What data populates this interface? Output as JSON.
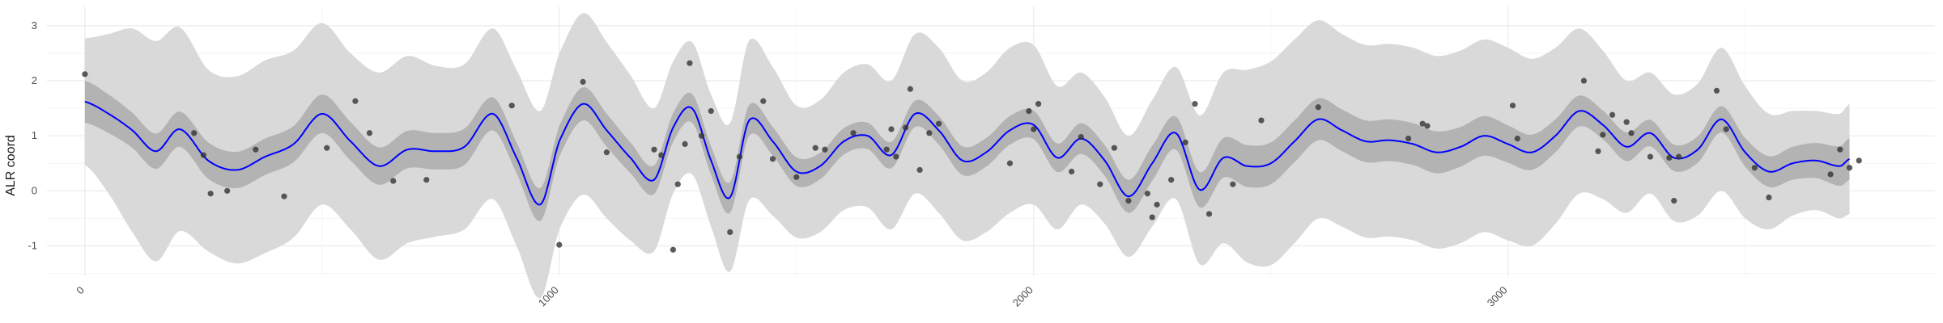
{
  "chart_data": {
    "type": "line",
    "title": "",
    "xlabel": "",
    "ylabel": "ALR coord",
    "xlim": [
      -80,
      3900
    ],
    "ylim": [
      -1.55,
      3.35
    ],
    "x_ticks": [
      0,
      1000,
      2000,
      3000
    ],
    "x_tick_labels": [
      "0",
      "1000",
      "2000",
      "3000"
    ],
    "y_ticks": [
      -1,
      0,
      1,
      2,
      3
    ],
    "y_tick_labels": [
      "-1",
      "0",
      "1",
      "2",
      "3"
    ],
    "grid": true,
    "legend": "none",
    "colors": {
      "mean_line": "#0000ff",
      "inner_band": "#b3b3b3",
      "outer_band": "#d9d9d9",
      "points": "#333333",
      "grid": "#ebebeb"
    },
    "series": [
      {
        "role": "mean",
        "x": [
          0,
          50,
          100,
          150,
          200,
          260,
          320,
          380,
          440,
          500,
          560,
          620,
          680,
          740,
          800,
          860,
          910,
          960,
          1000,
          1050,
          1100,
          1150,
          1200,
          1240,
          1280,
          1320,
          1360,
          1400,
          1450,
          1500,
          1550,
          1600,
          1650,
          1700,
          1750,
          1800,
          1850,
          1900,
          1950,
          2000,
          2050,
          2100,
          2150,
          2200,
          2250,
          2300,
          2350,
          2400,
          2450,
          2500,
          2550,
          2600,
          2650,
          2700,
          2750,
          2800,
          2850,
          2900,
          2950,
          3000,
          3050,
          3100,
          3150,
          3200,
          3250,
          3300,
          3350,
          3400,
          3450,
          3500,
          3550,
          3600,
          3650,
          3700,
          3720
        ],
        "values": [
          1.62,
          1.4,
          1.1,
          0.72,
          1.12,
          0.55,
          0.38,
          0.62,
          0.85,
          1.4,
          0.9,
          0.45,
          0.75,
          0.72,
          0.8,
          1.4,
          0.6,
          -0.25,
          0.9,
          1.58,
          1.1,
          0.6,
          0.2,
          1.15,
          1.5,
          0.55,
          -0.12,
          1.28,
          0.9,
          0.35,
          0.45,
          0.9,
          1.0,
          0.65,
          1.4,
          1.1,
          0.55,
          0.7,
          1.1,
          1.2,
          0.6,
          0.95,
          0.55,
          -0.1,
          0.5,
          1.05,
          0.02,
          0.6,
          0.45,
          0.5,
          0.9,
          1.3,
          1.1,
          0.9,
          0.92,
          0.85,
          0.7,
          0.8,
          1.0,
          0.85,
          0.7,
          1.0,
          1.45,
          1.2,
          0.8,
          1.05,
          0.6,
          0.75,
          1.3,
          0.7,
          0.35,
          0.5,
          0.55,
          0.45,
          0.58
        ]
      },
      {
        "role": "inner_band_half_width",
        "values": [
          0.38,
          0.35,
          0.32,
          0.32,
          0.32,
          0.33,
          0.33,
          0.33,
          0.33,
          0.35,
          0.35,
          0.34,
          0.34,
          0.33,
          0.33,
          0.3,
          0.28,
          0.3,
          0.28,
          0.3,
          0.3,
          0.28,
          0.26,
          0.26,
          0.26,
          0.26,
          0.28,
          0.28,
          0.26,
          0.26,
          0.24,
          0.24,
          0.24,
          0.24,
          0.24,
          0.26,
          0.26,
          0.26,
          0.26,
          0.26,
          0.26,
          0.28,
          0.28,
          0.3,
          0.32,
          0.3,
          0.32,
          0.36,
          0.38,
          0.38,
          0.38,
          0.38,
          0.38,
          0.38,
          0.38,
          0.38,
          0.38,
          0.36,
          0.36,
          0.34,
          0.32,
          0.3,
          0.28,
          0.26,
          0.26,
          0.24,
          0.24,
          0.24,
          0.24,
          0.26,
          0.28,
          0.3,
          0.32,
          0.36,
          0.38
        ]
      },
      {
        "role": "outer_band_half_width",
        "values": [
          1.15,
          1.45,
          1.85,
          2.0,
          1.85,
          1.65,
          1.7,
          1.75,
          1.7,
          1.65,
          1.6,
          1.7,
          1.7,
          1.55,
          1.5,
          1.55,
          1.6,
          1.7,
          1.6,
          1.65,
          1.6,
          1.5,
          1.3,
          1.2,
          1.2,
          1.2,
          1.35,
          1.45,
          1.35,
          1.2,
          1.2,
          1.25,
          1.3,
          1.35,
          1.45,
          1.5,
          1.45,
          1.45,
          1.5,
          1.45,
          1.3,
          1.2,
          1.15,
          1.1,
          1.15,
          1.2,
          1.35,
          1.55,
          1.75,
          1.85,
          1.85,
          1.8,
          1.75,
          1.75,
          1.75,
          1.75,
          1.75,
          1.75,
          1.75,
          1.75,
          1.7,
          1.6,
          1.5,
          1.35,
          1.2,
          1.1,
          1.15,
          1.2,
          1.3,
          1.2,
          1.05,
          0.95,
          0.9,
          0.95,
          1.0
        ]
      },
      {
        "role": "observations",
        "x": [
          0,
          230,
          250,
          265,
          300,
          360,
          420,
          510,
          570,
          600,
          650,
          720,
          900,
          1000,
          1050,
          1100,
          1200,
          1215,
          1240,
          1250,
          1265,
          1275,
          1300,
          1320,
          1360,
          1380,
          1430,
          1450,
          1500,
          1540,
          1560,
          1620,
          1690,
          1700,
          1710,
          1730,
          1740,
          1760,
          1780,
          1800,
          1950,
          1990,
          2000,
          2010,
          2080,
          2100,
          2140,
          2170,
          2200,
          2240,
          2250,
          2260,
          2290,
          2320,
          2340,
          2370,
          2420,
          2480,
          2600,
          2790,
          2820,
          2830,
          3010,
          3020,
          3160,
          3190,
          3200,
          3220,
          3250,
          3260,
          3300,
          3340,
          3350,
          3360,
          3440,
          3460,
          3520,
          3550,
          3680,
          3700,
          3720,
          3740
        ],
        "values": [
          2.12,
          1.05,
          0.65,
          -0.05,
          0.0,
          0.75,
          -0.1,
          0.78,
          1.63,
          1.05,
          0.18,
          0.2,
          1.55,
          -0.98,
          1.98,
          0.7,
          0.75,
          0.65,
          -1.07,
          0.12,
          0.85,
          2.32,
          1.0,
          1.45,
          -0.75,
          0.62,
          1.63,
          0.58,
          0.25,
          0.78,
          0.75,
          1.05,
          0.75,
          1.12,
          0.62,
          1.15,
          1.85,
          0.38,
          1.05,
          1.22,
          0.5,
          1.45,
          1.12,
          1.58,
          0.35,
          0.98,
          0.12,
          0.78,
          -0.18,
          -0.05,
          -0.48,
          -0.25,
          0.2,
          0.88,
          1.58,
          -0.42,
          0.12,
          1.28,
          1.52,
          0.95,
          1.22,
          1.18,
          1.55,
          0.95,
          2.0,
          0.72,
          1.02,
          1.38,
          1.25,
          1.05,
          0.62,
          0.6,
          -0.18,
          0.62,
          1.82,
          1.12,
          0.42,
          -0.12,
          0.3,
          0.75,
          0.42,
          0.55
        ]
      }
    ]
  }
}
